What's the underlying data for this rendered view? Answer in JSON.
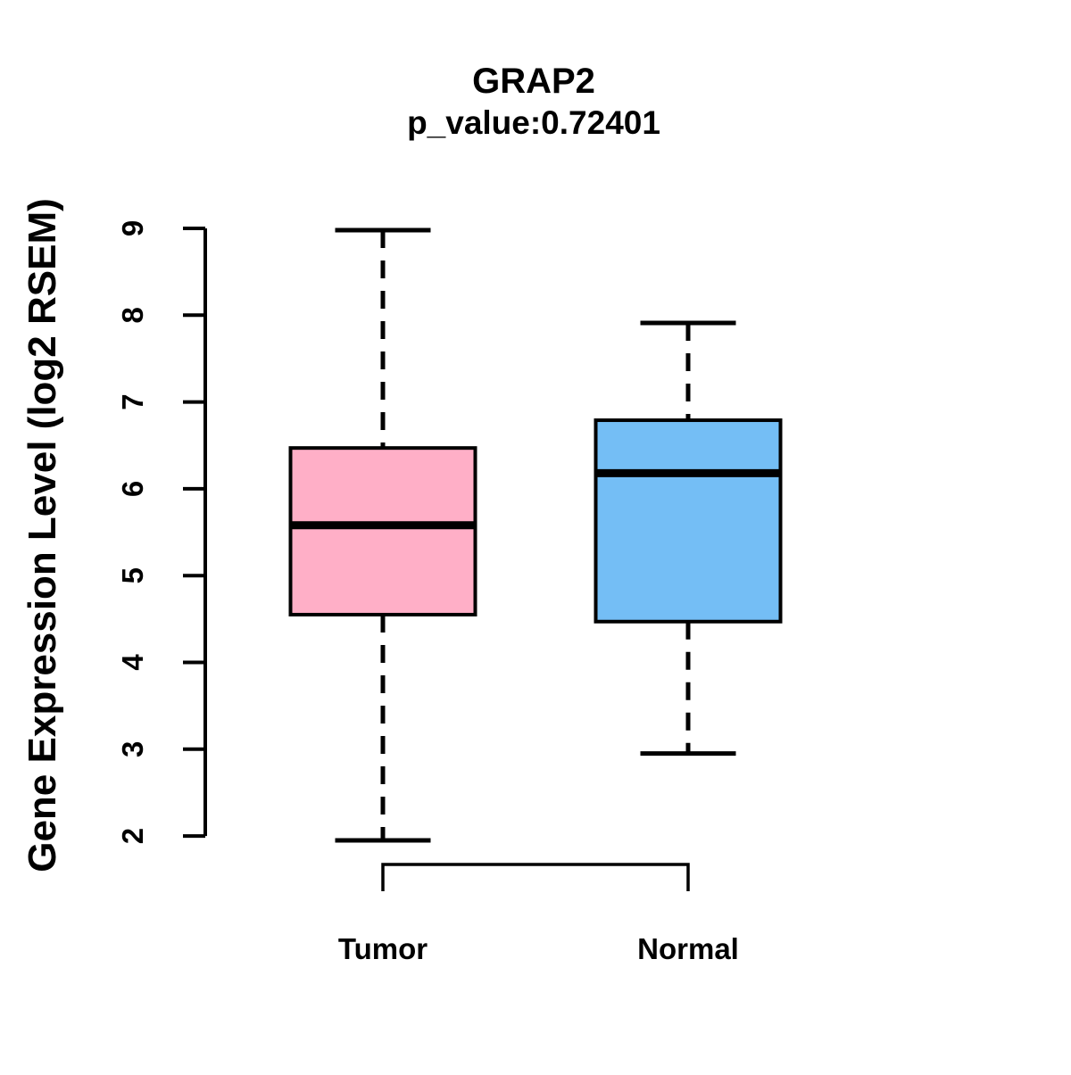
{
  "figure": {
    "background": "#FFFFFF",
    "line_color": "#000000"
  },
  "chart_data": {
    "type": "boxplot",
    "title": "GRAP2",
    "subtitle": "p_value:0.72401",
    "ylabel": "Gene Expression Level (log2 RSEM)",
    "xlabel": "",
    "categories": [
      "Tumor",
      "Normal"
    ],
    "series": [
      {
        "name": "Tumor",
        "min": 1.95,
        "q1": 4.55,
        "median": 5.58,
        "q3": 6.47,
        "max": 8.98,
        "fill": "#FFAFC7"
      },
      {
        "name": "Normal",
        "min": 2.95,
        "q1": 4.47,
        "median": 6.18,
        "q3": 6.79,
        "max": 7.91,
        "fill": "#74BEF5"
      }
    ],
    "y_ticks": [
      2,
      3,
      4,
      5,
      6,
      7,
      8,
      9
    ],
    "ylim": [
      2,
      9
    ],
    "grid": false,
    "legend": false,
    "whisker_style": "dashed",
    "comparison_bracket": {
      "from": "Tumor",
      "to": "Normal"
    }
  }
}
